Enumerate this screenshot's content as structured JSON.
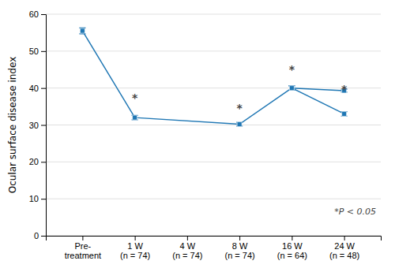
{
  "chart_data": {
    "type": "line",
    "y_label": "Ocular surface disease index",
    "categories": [
      "Pre-\ntreatment",
      "1 W\n(n = 74)",
      "4 W\n(n = 74)",
      "8 W\n(n = 74)",
      "16 W\n(n = 64)",
      "24 W\n(n = 48)"
    ],
    "series": [
      {
        "x": [
          "Pre-\ntreatment",
          "1 W\n(n = 74)",
          "8 W\n(n = 74)",
          "16 W\n(n = 64)",
          "24 W\n(n = 48)"
        ],
        "values": [
          55.5,
          32.0,
          30.2,
          40.0,
          33.0
        ],
        "errors": [
          0.8,
          0.6,
          0.5,
          0.6,
          0.6
        ],
        "marker": "square"
      },
      {
        "x": [
          "16 W\n(n = 64)",
          "24 W\n(n = 48)"
        ],
        "values": [
          40.0,
          39.3
        ],
        "errors": [
          0.6,
          0.4
        ],
        "marker": "square"
      }
    ],
    "annotations": [
      {
        "text": "*",
        "x": "1 W\n(n = 74)",
        "y": 37.2
      },
      {
        "text": "*",
        "x": "8 W\n(n = 74)",
        "y": 34.4
      },
      {
        "text": "*",
        "x": "16 W\n(n = 64)",
        "y": 44.8
      },
      {
        "text": "*",
        "x": "24 W\n(n = 48)",
        "y": 39.4
      },
      {
        "text": "*P < 0.05"
      }
    ],
    "ylim": [
      0,
      60
    ],
    "yticks": [
      0,
      10,
      20,
      30,
      40,
      50,
      60
    ],
    "grid": true
  }
}
